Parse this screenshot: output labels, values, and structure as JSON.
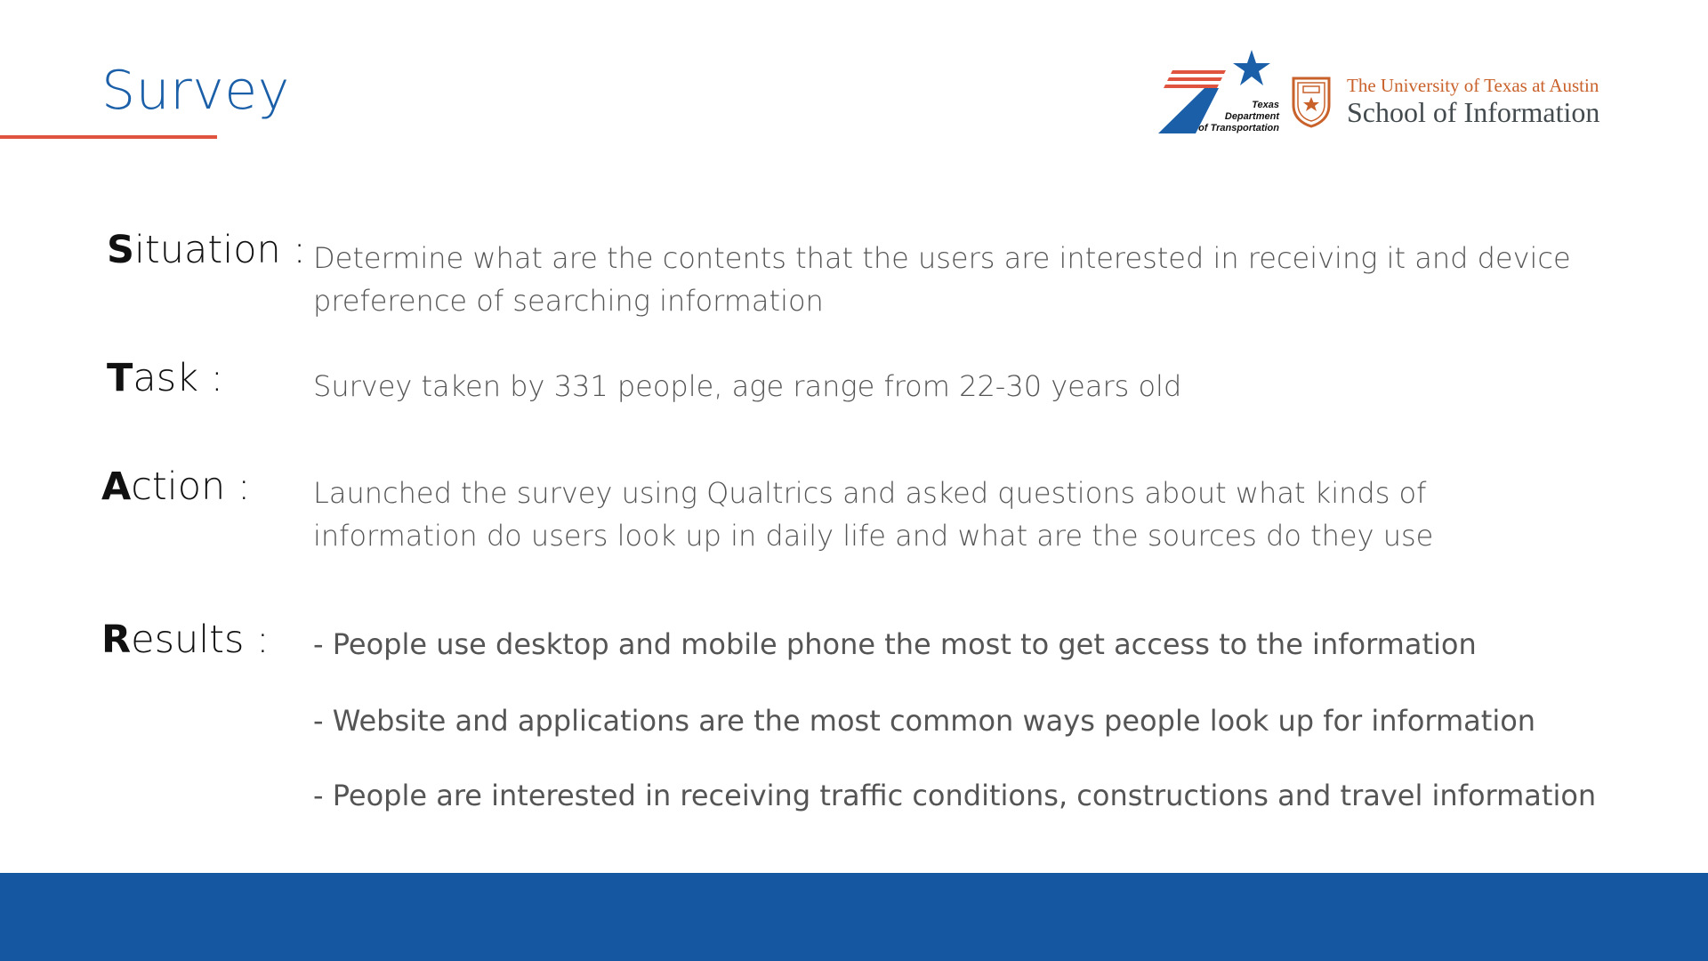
{
  "slide": {
    "title": "Survey",
    "colors": {
      "title": "#1a5fa8",
      "rule": "#e0533e",
      "footer": "#1557a0",
      "ut_orange": "#c9612b"
    }
  },
  "logos": {
    "txdot": {
      "line1": "Texas",
      "line2": "Department",
      "line3": "of Transportation",
      "icon": "txdot-star-logo"
    },
    "ut": {
      "line1": "The University of Texas at Austin",
      "line2": "School of Information",
      "icon": "ut-seal-icon"
    }
  },
  "rows": [
    {
      "initial": "S",
      "rest": "ituation :",
      "text": "Determine what are the contents that the users are interested in receiving it and device preference of searching information"
    },
    {
      "initial": "T",
      "rest": "ask :",
      "text": "Survey taken by 331 people, age range from 22-30 years old"
    },
    {
      "initial": "A",
      "rest": "ction :",
      "text": "Launched the survey using Qualtrics and asked questions about what kinds of information do users look up in daily life and what are the sources do they use"
    },
    {
      "initial": "R",
      "rest": "esults :",
      "text": ""
    }
  ],
  "results": [
    "- People use desktop and mobile phone the most to get access to the information",
    "- Website and applications are the most common ways people look up for information",
    "- People are interested in receiving traffic conditions, constructions and travel information"
  ]
}
